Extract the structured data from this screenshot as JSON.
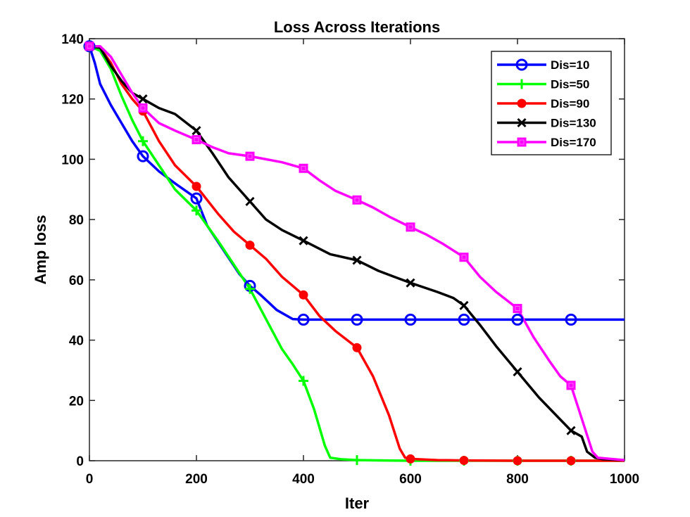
{
  "chart_data": {
    "type": "line",
    "title": "Loss Across Iterations",
    "xlabel": "Iter",
    "ylabel": "Amp loss",
    "xlim": [
      0,
      1000
    ],
    "ylim": [
      0,
      140
    ],
    "xticks": [
      0,
      200,
      400,
      600,
      800,
      1000
    ],
    "yticks": [
      0,
      20,
      40,
      60,
      80,
      100,
      120,
      140
    ],
    "grid": false,
    "legend_position": "top-right",
    "series": [
      {
        "name": "Dis=10",
        "color": "#0000ff",
        "marker": "circle",
        "marker_x": [
          0,
          100,
          200,
          300,
          400,
          500,
          600,
          700,
          800,
          900
        ],
        "x": [
          0,
          10,
          20,
          40,
          60,
          80,
          100,
          130,
          160,
          200,
          220,
          250,
          280,
          300,
          320,
          350,
          380,
          400,
          450,
          500,
          600,
          700,
          800,
          900,
          1000
        ],
        "y": [
          137.5,
          132,
          125,
          118,
          112,
          106,
          101,
          96,
          92,
          87,
          78,
          70,
          62,
          58,
          55,
          50,
          47,
          46.8,
          46.8,
          46.8,
          46.8,
          46.8,
          46.8,
          46.8,
          46.8
        ]
      },
      {
        "name": "Dis=50",
        "color": "#00ff00",
        "marker": "plus",
        "marker_x": [
          0,
          100,
          200,
          300,
          400,
          500,
          600,
          700,
          800,
          900
        ],
        "x": [
          0,
          20,
          40,
          60,
          80,
          100,
          130,
          160,
          200,
          240,
          270,
          300,
          330,
          360,
          380,
          400,
          420,
          440,
          450,
          470,
          500,
          550,
          600,
          700,
          800,
          900,
          1000
        ],
        "y": [
          137.5,
          136,
          130,
          121,
          113,
          106,
          98,
          90,
          83,
          73,
          65,
          57,
          47,
          37,
          32,
          26.5,
          17,
          5,
          1,
          0.5,
          0.2,
          0.1,
          0,
          0,
          0,
          0,
          0
        ],
        "markers_y": [
          137.5,
          106,
          83,
          57,
          26.5,
          0.2,
          0,
          0,
          0,
          0
        ]
      },
      {
        "name": "Dis=90",
        "color": "#ff0000",
        "marker": "filled-circle",
        "marker_x": [
          0,
          100,
          200,
          300,
          400,
          500,
          600,
          700,
          800,
          900
        ],
        "x": [
          0,
          20,
          40,
          60,
          80,
          100,
          130,
          160,
          200,
          240,
          270,
          300,
          330,
          360,
          400,
          430,
          460,
          500,
          530,
          560,
          580,
          590,
          600,
          650,
          700,
          800,
          900,
          1000
        ],
        "y": [
          137.5,
          137,
          132,
          125,
          120,
          116,
          106,
          98,
          91,
          82,
          76,
          71.5,
          67,
          61,
          55,
          48,
          43,
          37.5,
          28,
          15,
          4,
          1,
          0.6,
          0.2,
          0.1,
          0,
          0,
          0
        ]
      },
      {
        "name": "Dis=130",
        "color": "#000000",
        "marker": "x",
        "marker_x": [
          0,
          100,
          200,
          300,
          400,
          500,
          600,
          700,
          800,
          900
        ],
        "x": [
          0,
          20,
          40,
          60,
          80,
          100,
          130,
          160,
          200,
          230,
          260,
          300,
          330,
          360,
          400,
          450,
          500,
          540,
          570,
          600,
          650,
          680,
          700,
          730,
          760,
          800,
          840,
          870,
          900,
          920,
          930,
          945,
          960,
          1000
        ],
        "y": [
          137.5,
          137,
          131,
          126,
          122,
          120,
          117,
          115,
          109.5,
          102,
          94,
          86,
          80,
          76.5,
          73,
          68.5,
          66.5,
          63,
          61,
          59,
          56,
          54,
          51.5,
          45,
          38,
          29.5,
          21,
          15.5,
          10,
          8,
          3,
          1,
          0.5,
          0.2
        ]
      },
      {
        "name": "Dis=170",
        "color": "#ff00ff",
        "marker": "square",
        "marker_x": [
          0,
          100,
          200,
          300,
          400,
          500,
          600,
          700,
          800,
          900
        ],
        "x": [
          0,
          20,
          40,
          60,
          80,
          100,
          130,
          160,
          200,
          230,
          260,
          300,
          330,
          360,
          400,
          430,
          460,
          500,
          530,
          560,
          600,
          630,
          660,
          700,
          730,
          760,
          800,
          830,
          860,
          880,
          900,
          920,
          940,
          950,
          1000
        ],
        "y": [
          137.5,
          137.5,
          134,
          128,
          122,
          117,
          112,
          109.5,
          106.5,
          104,
          102,
          101,
          100,
          99,
          97,
          93,
          89.5,
          86.5,
          84,
          81,
          77.5,
          75,
          72,
          67.5,
          61,
          56,
          50.5,
          41,
          33,
          28,
          25,
          14,
          3,
          1,
          0.2
        ]
      }
    ]
  }
}
